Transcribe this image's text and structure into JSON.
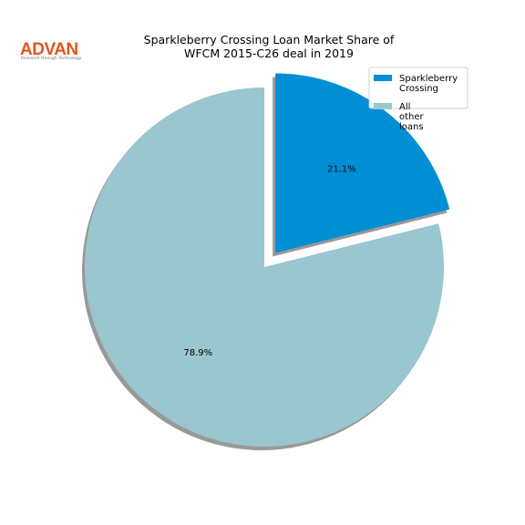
{
  "logo": {
    "name": "ADVAN",
    "tagline": "Research through Technology"
  },
  "chart_data": {
    "type": "pie",
    "title": [
      "Sparkleberry Crossing Loan Market Share of",
      "WFCM 2015-C26 deal in 2019"
    ],
    "categories": [
      "Sparkleberry Crossing",
      "All other loans"
    ],
    "values": [
      21.1,
      78.9
    ],
    "value_labels": [
      "21.1%",
      "78.9%"
    ],
    "colors": [
      "#008fd5",
      "#99c6cf"
    ],
    "explode": [
      0.1,
      0
    ],
    "start_angle": 90,
    "counterclock": false,
    "shadow": true,
    "legend": "upper right"
  }
}
